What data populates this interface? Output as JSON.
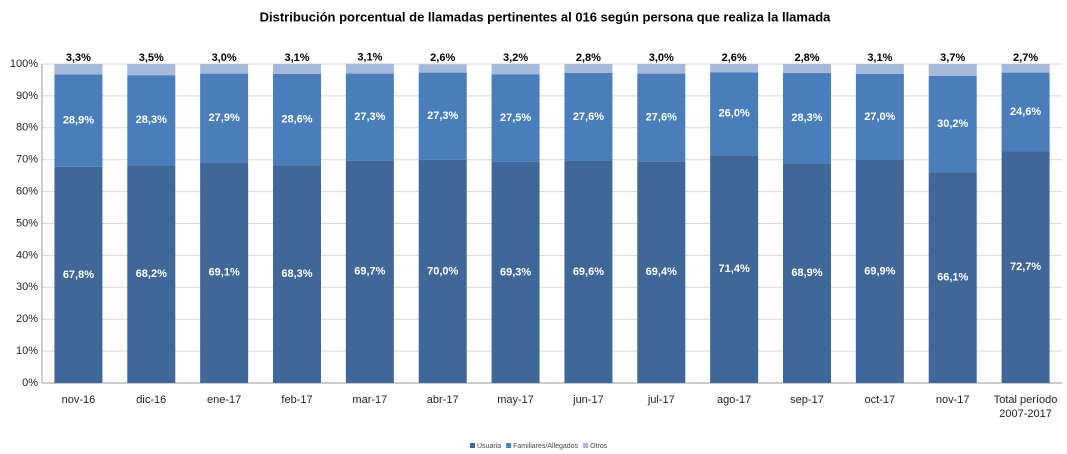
{
  "chart_data": {
    "type": "stacked_bar",
    "title": "Distribución porcentual de llamadas  pertinentes al 016 según persona que  realiza la llamada",
    "categories": [
      "nov-16",
      "dic-16",
      "ene-17",
      "feb-17",
      "mar-17",
      "abr-17",
      "may-17",
      "jun-17",
      "jul-17",
      "ago-17",
      "sep-17",
      "oct-17",
      "nov-17",
      "Total período 2007-2017"
    ],
    "series": [
      {
        "name": "Usuaria",
        "color": "#3f6797",
        "values": [
          67.8,
          68.2,
          69.1,
          68.3,
          69.7,
          70.0,
          69.3,
          69.6,
          69.4,
          71.4,
          68.9,
          69.9,
          66.1,
          72.7
        ],
        "value_labels": [
          "67,8%",
          "68,2%",
          "69,1%",
          "68,3%",
          "69,7%",
          "70,0%",
          "69,3%",
          "69,6%",
          "69,4%",
          "71,4%",
          "68,9%",
          "69,9%",
          "66,1%",
          "72,7%"
        ]
      },
      {
        "name": "Familiares/Allegados",
        "color": "#4a7ebb",
        "values": [
          28.9,
          28.3,
          27.9,
          28.6,
          27.3,
          27.3,
          27.5,
          27.6,
          27.6,
          26.0,
          28.3,
          27.0,
          30.2,
          24.6
        ],
        "value_labels": [
          "28,9%",
          "28,3%",
          "27,9%",
          "28,6%",
          "27,3%",
          "27,3%",
          "27,5%",
          "27,6%",
          "27,6%",
          "26,0%",
          "28,3%",
          "27,0%",
          "30,2%",
          "24,6%"
        ]
      },
      {
        "name": "Otros",
        "color": "#a7b9da",
        "values": [
          3.3,
          3.5,
          3.0,
          3.1,
          3.1,
          2.6,
          3.2,
          2.8,
          3.0,
          2.6,
          2.8,
          3.1,
          3.7,
          2.7
        ],
        "value_labels": [
          "3,3%",
          "3,5%",
          "3,0%",
          "3,1%",
          "3,1%",
          "2,6%",
          "3,2%",
          "2,8%",
          "3,0%",
          "2,6%",
          "2,8%",
          "3,1%",
          "3,7%",
          "2,7%"
        ]
      }
    ],
    "ylim": [
      0,
      100
    ],
    "yticks": [
      {
        "value": 0,
        "label": "0%"
      },
      {
        "value": 10,
        "label": "10%"
      },
      {
        "value": 20,
        "label": "20%"
      },
      {
        "value": 30,
        "label": "30%"
      },
      {
        "value": 40,
        "label": "40%"
      },
      {
        "value": 50,
        "label": "50%"
      },
      {
        "value": 60,
        "label": "60%"
      },
      {
        "value": 70,
        "label": "70%"
      },
      {
        "value": 80,
        "label": "80%"
      },
      {
        "value": 90,
        "label": "90%"
      },
      {
        "value": 100,
        "label": "100%"
      }
    ],
    "grid": true,
    "legend": "bottom"
  }
}
